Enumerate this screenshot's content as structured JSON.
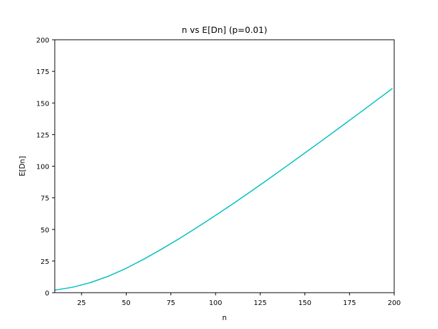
{
  "chart_data": {
    "type": "line",
    "title": "n vs E[Dn] (p=0.01)",
    "xlabel": "n",
    "ylabel": "E[Dn]",
    "xlim": [
      10,
      200
    ],
    "ylim": [
      0,
      200
    ],
    "xticks": [
      25,
      50,
      75,
      100,
      125,
      150,
      175,
      200
    ],
    "yticks": [
      0,
      25,
      50,
      75,
      100,
      125,
      150,
      175,
      200
    ],
    "grid": false,
    "series": [
      {
        "color": "#00bfbf",
        "x": [
          10,
          20,
          30,
          40,
          50,
          60,
          70,
          80,
          90,
          100,
          110,
          120,
          130,
          140,
          150,
          160,
          170,
          180,
          190,
          199
        ],
        "y": [
          2.0,
          4.3,
          8.0,
          13.0,
          19.3,
          26.6,
          34.6,
          43.0,
          51.9,
          61.1,
          70.5,
          80.3,
          90.2,
          100.3,
          110.5,
          120.7,
          131.1,
          141.5,
          152.0,
          161.5
        ]
      }
    ]
  }
}
